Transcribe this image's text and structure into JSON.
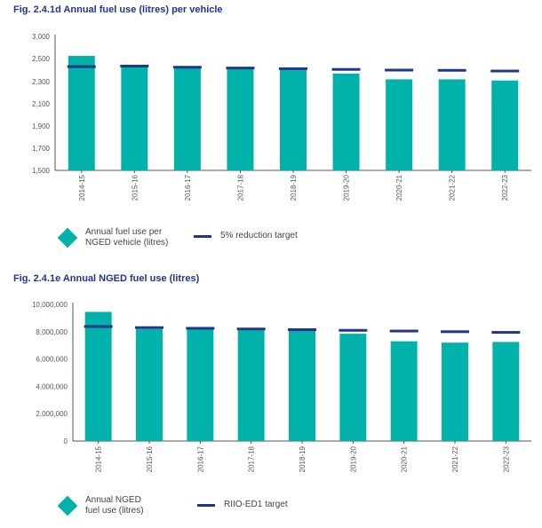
{
  "chart_data": [
    {
      "type": "bar",
      "title": "Fig. 2.4.1d Annual fuel use (litres) per vehicle",
      "categories": [
        "2014-15",
        "2015-16",
        "2016-17",
        "2017-18",
        "2018-19",
        "2019-20",
        "2020-21",
        "2021-22",
        "2022-23"
      ],
      "ylim": [
        1500,
        3000
      ],
      "yticks": [
        "1,500",
        "1,700",
        "1,900",
        "2,100",
        "2,300",
        "2,500",
        "3,000"
      ],
      "ytick_values": [
        1500,
        1700,
        1900,
        2100,
        2300,
        2500,
        3000
      ],
      "series": [
        {
          "name": "Annual fuel use per NGED vehicle (litres)",
          "type": "bar",
          "color": "#00b2a9",
          "values": [
            2560,
            2430,
            2420,
            2410,
            2400,
            2370,
            2320,
            2320,
            2310
          ]
        },
        {
          "name": "5% reduction target",
          "type": "target",
          "color": "#23358a",
          "values": [
            2430,
            2435,
            2425,
            2418,
            2412,
            2406,
            2400,
            2398,
            2392
          ]
        }
      ],
      "legend": {
        "bar_label_line1": "Annual fuel use per",
        "bar_label_line2": "NGED vehicle (litres)",
        "target_label": "5% reduction target"
      }
    },
    {
      "type": "bar",
      "title": "Fig. 2.4.1e Annual NGED fuel use (litres)",
      "categories": [
        "2014-15",
        "2015-16",
        "2016-17",
        "2017-18",
        "2018-19",
        "2019-20",
        "2020-21",
        "2021-22",
        "2022-23"
      ],
      "ylim": [
        0,
        10000000
      ],
      "yticks": [
        "0",
        "2,000,000",
        "4,000,000",
        "6,000,000",
        "8,000,000",
        "10,000,000"
      ],
      "ytick_values": [
        0,
        2000000,
        4000000,
        6000000,
        8000000,
        10000000
      ],
      "series": [
        {
          "name": "Annual NGED fuel use (litres)",
          "type": "bar",
          "color": "#00b2a9",
          "values": [
            9450000,
            8200000,
            8250000,
            8150000,
            8100000,
            7850000,
            7300000,
            7200000,
            7250000
          ]
        },
        {
          "name": "RIIO-ED1 target",
          "type": "target",
          "color": "#23358a",
          "values": [
            8380000,
            8300000,
            8250000,
            8200000,
            8150000,
            8100000,
            8050000,
            8000000,
            7950000
          ]
        }
      ],
      "legend": {
        "bar_label_line1": "Annual NGED",
        "bar_label_line2": "fuel use (litres)",
        "target_label": "RIIO-ED1 target"
      }
    }
  ]
}
